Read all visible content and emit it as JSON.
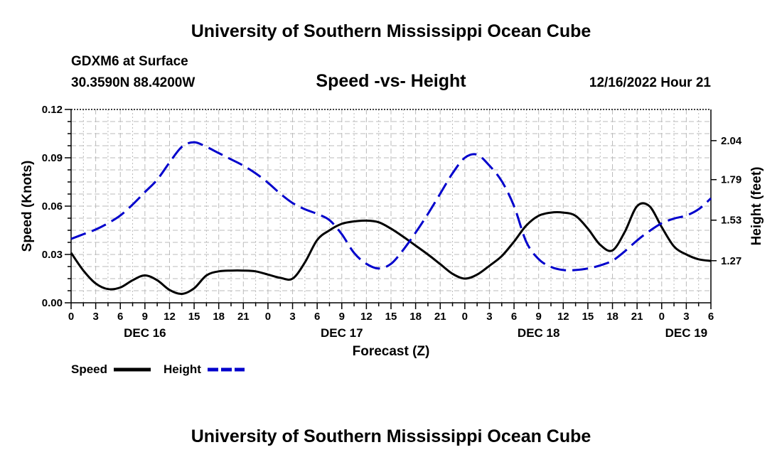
{
  "header": {
    "title": "University of Southern Mississippi Ocean Cube",
    "station": "GDXM6 at Surface",
    "coordinates": "30.3590N  88.4200W",
    "datetime": "12/16/2022 Hour 21",
    "footer_title": "University of Southern Mississippi Ocean Cube"
  },
  "chart_data": {
    "type": "line",
    "title": "Speed -vs- Height",
    "xlabel": "Forecast (Z)",
    "ylabel": "Speed (Knots)",
    "y2label": "Height (feet)",
    "x_range_hours": [
      0,
      78
    ],
    "x": [
      0,
      1.5,
      3,
      4.5,
      6,
      7.5,
      9,
      10.5,
      12,
      13.5,
      15,
      16.5,
      18,
      19.5,
      21,
      22.5,
      24,
      25.5,
      27,
      28.5,
      30,
      31.5,
      33,
      34.5,
      36,
      37.5,
      39,
      40.5,
      42,
      43.5,
      45,
      46.5,
      48,
      49.5,
      51,
      52.5,
      54,
      55.5,
      57,
      58.5,
      60,
      61.5,
      63,
      64.5,
      66,
      67.5,
      69,
      70.5,
      72,
      73.5,
      75,
      76.5,
      78
    ],
    "x_tick_values": [
      0,
      3,
      6,
      9,
      12,
      15,
      18,
      21,
      24,
      27,
      30,
      33,
      36,
      39,
      42,
      45,
      48,
      51,
      54,
      57,
      60,
      63,
      66,
      69,
      72,
      75,
      78
    ],
    "x_tick_labels": [
      "0",
      "3",
      "6",
      "9",
      "12",
      "15",
      "18",
      "21",
      "0",
      "3",
      "6",
      "9",
      "12",
      "15",
      "18",
      "21",
      "0",
      "3",
      "6",
      "9",
      "12",
      "15",
      "18",
      "21",
      "0",
      "3",
      "6"
    ],
    "date_labels": [
      {
        "hour": 9,
        "label": "DEC 16"
      },
      {
        "hour": 33,
        "label": "DEC 17"
      },
      {
        "hour": 57,
        "label": "DEC 18"
      },
      {
        "hour": 75,
        "label": "DEC 19"
      }
    ],
    "ylim": [
      0,
      0.12
    ],
    "y_ticks": [
      0.0,
      0.03,
      0.06,
      0.09,
      0.12
    ],
    "y_tick_labels": [
      "0.00",
      "0.03",
      "0.06",
      "0.09",
      "0.12"
    ],
    "y2lim": [
      1.0,
      2.24
    ],
    "y2_ticks": [
      1.27,
      1.53,
      1.79,
      2.04
    ],
    "y2_tick_labels": [
      "1.27",
      "1.53",
      "1.79",
      "2.04"
    ],
    "grid": true,
    "series": [
      {
        "name": "Speed",
        "axis": "left",
        "color": "#000000",
        "style": "solid",
        "values": [
          0.031,
          0.02,
          0.012,
          0.0085,
          0.0095,
          0.014,
          0.017,
          0.014,
          0.008,
          0.0055,
          0.009,
          0.017,
          0.0195,
          0.02,
          0.02,
          0.0195,
          0.0175,
          0.0155,
          0.015,
          0.025,
          0.039,
          0.045,
          0.049,
          0.0505,
          0.051,
          0.05,
          0.046,
          0.041,
          0.0355,
          0.03,
          0.024,
          0.018,
          0.015,
          0.0175,
          0.023,
          0.029,
          0.038,
          0.048,
          0.054,
          0.056,
          0.056,
          0.054,
          0.046,
          0.036,
          0.0325,
          0.044,
          0.06,
          0.06,
          0.047,
          0.035,
          0.03,
          0.027,
          0.026
        ]
      },
      {
        "name": "Height",
        "axis": "right",
        "color": "#0000cc",
        "style": "dashed",
        "values": [
          1.41,
          1.44,
          1.47,
          1.51,
          1.56,
          1.63,
          1.71,
          1.79,
          1.9,
          2.0,
          2.03,
          2.0,
          1.96,
          1.92,
          1.88,
          1.83,
          1.77,
          1.7,
          1.64,
          1.6,
          1.57,
          1.53,
          1.44,
          1.32,
          1.25,
          1.22,
          1.25,
          1.34,
          1.45,
          1.57,
          1.7,
          1.83,
          1.93,
          1.95,
          1.88,
          1.78,
          1.62,
          1.39,
          1.28,
          1.23,
          1.21,
          1.21,
          1.22,
          1.24,
          1.27,
          1.33,
          1.4,
          1.46,
          1.51,
          1.54,
          1.56,
          1.6,
          1.67
        ]
      }
    ]
  },
  "legend": {
    "speed_label": "Speed",
    "height_label": "Height"
  }
}
